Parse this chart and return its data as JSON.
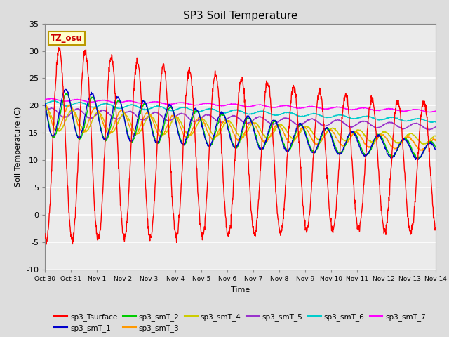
{
  "title": "SP3 Soil Temperature",
  "xlabel": "Time",
  "ylabel": "Soil Temperature (C)",
  "ylim": [
    -10,
    35
  ],
  "xlim": [
    0,
    15
  ],
  "xtick_labels": [
    "Oct 30",
    "Oct 31",
    "Nov 1",
    "Nov 2",
    "Nov 3",
    "Nov 4",
    "Nov 5",
    "Nov 6",
    "Nov 7",
    "Nov 8",
    "Nov 9",
    "Nov 10",
    "Nov 11",
    "Nov 12",
    "Nov 13",
    "Nov 14"
  ],
  "ytick_vals": [
    -10,
    -5,
    0,
    5,
    10,
    15,
    20,
    25,
    30,
    35
  ],
  "annotation": "TZ_osu",
  "annotation_color": "#cc0000",
  "annotation_bg": "#ffffcc",
  "annotation_border": "#bb9900",
  "series_colors": {
    "sp3_Tsurface": "#ff0000",
    "sp3_smT_1": "#0000cc",
    "sp3_smT_2": "#00cc00",
    "sp3_smT_3": "#ff9900",
    "sp3_smT_4": "#cccc00",
    "sp3_smT_5": "#9933cc",
    "sp3_smT_6": "#00cccc",
    "sp3_smT_7": "#ff00ff"
  },
  "bg_color": "#dddddd",
  "plot_bg": "#ebebeb",
  "fig_width": 6.4,
  "fig_height": 4.8,
  "dpi": 100
}
